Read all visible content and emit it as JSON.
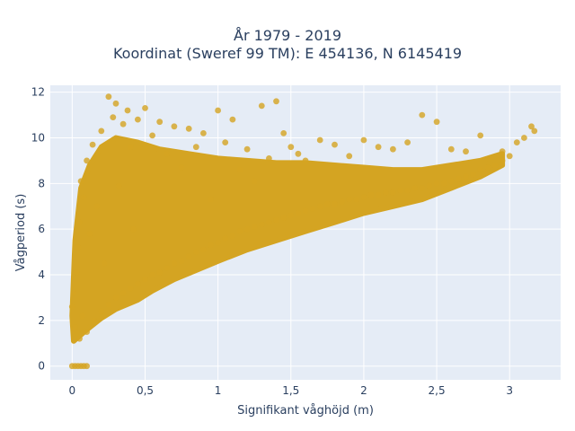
{
  "chart_data": {
    "type": "scatter",
    "title": "År 1979 - 2019",
    "subtitle": "Koordinat (Sweref 99 TM): E 454136, N 6145419",
    "xlabel": "Signifikant våghöjd (m)",
    "ylabel": "Vågperiod (s)",
    "xlim": [
      -0.15,
      3.35
    ],
    "ylim": [
      -0.6,
      12.3
    ],
    "xticks": [
      0,
      0.5,
      1,
      1.5,
      2,
      2.5,
      3
    ],
    "xtick_labels": [
      "0",
      "0,5",
      "1",
      "1,5",
      "2",
      "2,5",
      "3"
    ],
    "yticks": [
      0,
      2,
      4,
      6,
      8,
      10,
      12
    ],
    "ytick_labels": [
      "0",
      "2",
      "4",
      "6",
      "8",
      "10",
      "12"
    ],
    "grid": true,
    "marker_color": "#d4a422",
    "background_color": "#e5ecf6",
    "series": [
      {
        "points": [
          [
            0.0,
            0.0
          ],
          [
            0.02,
            0.0
          ],
          [
            0.04,
            0.0
          ],
          [
            0.06,
            0.0
          ],
          [
            0.08,
            0.0
          ],
          [
            0.1,
            0.0
          ],
          [
            0.0,
            2.6
          ],
          [
            0.01,
            3.2
          ],
          [
            0.02,
            1.7
          ],
          [
            0.03,
            4.1
          ],
          [
            0.04,
            5.2
          ],
          [
            0.05,
            1.2
          ],
          [
            0.05,
            6.3
          ],
          [
            0.06,
            8.1
          ],
          [
            0.07,
            2.2
          ],
          [
            0.08,
            7.4
          ],
          [
            0.1,
            1.5
          ],
          [
            0.1,
            9.0
          ],
          [
            0.12,
            5.8
          ],
          [
            0.14,
            9.7
          ],
          [
            0.15,
            2.0
          ],
          [
            0.17,
            7.0
          ],
          [
            0.2,
            2.4
          ],
          [
            0.2,
            10.3
          ],
          [
            0.22,
            4.5
          ],
          [
            0.25,
            2.7
          ],
          [
            0.25,
            11.8
          ],
          [
            0.28,
            10.9
          ],
          [
            0.3,
            3.0
          ],
          [
            0.3,
            11.5
          ],
          [
            0.32,
            7.9
          ],
          [
            0.35,
            3.2
          ],
          [
            0.35,
            10.6
          ],
          [
            0.38,
            11.2
          ],
          [
            0.4,
            3.4
          ],
          [
            0.4,
            9.6
          ],
          [
            0.42,
            6.0
          ],
          [
            0.45,
            3.6
          ],
          [
            0.45,
            10.8
          ],
          [
            0.5,
            3.8
          ],
          [
            0.5,
            11.3
          ],
          [
            0.55,
            4.0
          ],
          [
            0.55,
            10.1
          ],
          [
            0.6,
            4.1
          ],
          [
            0.6,
            10.7
          ],
          [
            0.65,
            4.3
          ],
          [
            0.65,
            9.3
          ],
          [
            0.7,
            4.5
          ],
          [
            0.7,
            10.5
          ],
          [
            0.75,
            4.6
          ],
          [
            0.75,
            8.7
          ],
          [
            0.8,
            4.8
          ],
          [
            0.8,
            10.4
          ],
          [
            0.85,
            5.0
          ],
          [
            0.85,
            9.6
          ],
          [
            0.9,
            5.1
          ],
          [
            0.9,
            10.2
          ],
          [
            0.95,
            5.3
          ],
          [
            0.95,
            7.3
          ],
          [
            1.0,
            5.4
          ],
          [
            1.0,
            11.2
          ],
          [
            1.05,
            5.6
          ],
          [
            1.05,
            9.8
          ],
          [
            1.1,
            5.7
          ],
          [
            1.1,
            10.8
          ],
          [
            1.15,
            5.9
          ],
          [
            1.15,
            8.6
          ],
          [
            1.2,
            6.0
          ],
          [
            1.2,
            9.5
          ],
          [
            1.25,
            6.1
          ],
          [
            1.25,
            8.1
          ],
          [
            1.3,
            6.2
          ],
          [
            1.3,
            11.4
          ],
          [
            1.35,
            6.3
          ],
          [
            1.35,
            9.1
          ],
          [
            1.4,
            6.4
          ],
          [
            1.4,
            11.6
          ],
          [
            1.45,
            6.5
          ],
          [
            1.45,
            10.2
          ],
          [
            1.5,
            6.6
          ],
          [
            1.5,
            9.6
          ],
          [
            1.55,
            6.7
          ],
          [
            1.55,
            9.3
          ],
          [
            1.6,
            6.8
          ],
          [
            1.6,
            9.0
          ],
          [
            1.65,
            6.9
          ],
          [
            1.7,
            7.0
          ],
          [
            1.7,
            9.9
          ],
          [
            1.75,
            7.1
          ],
          [
            1.8,
            7.1
          ],
          [
            1.8,
            9.7
          ],
          [
            1.85,
            7.2
          ],
          [
            1.9,
            7.3
          ],
          [
            1.9,
            9.2
          ],
          [
            1.95,
            7.3
          ],
          [
            2.0,
            7.4
          ],
          [
            2.0,
            9.9
          ],
          [
            2.05,
            7.5
          ],
          [
            2.1,
            7.5
          ],
          [
            2.1,
            9.6
          ],
          [
            2.15,
            7.6
          ],
          [
            2.2,
            7.6
          ],
          [
            2.2,
            9.5
          ],
          [
            2.25,
            7.7
          ],
          [
            2.3,
            7.7
          ],
          [
            2.3,
            9.8
          ],
          [
            2.35,
            7.8
          ],
          [
            2.4,
            7.8
          ],
          [
            2.4,
            11.0
          ],
          [
            2.45,
            7.9
          ],
          [
            2.5,
            8.0
          ],
          [
            2.5,
            10.7
          ],
          [
            2.55,
            8.0
          ],
          [
            2.6,
            8.1
          ],
          [
            2.6,
            9.5
          ],
          [
            2.65,
            8.2
          ],
          [
            2.7,
            8.3
          ],
          [
            2.7,
            9.4
          ],
          [
            2.75,
            8.4
          ],
          [
            2.8,
            8.6
          ],
          [
            2.8,
            10.1
          ],
          [
            2.85,
            8.7
          ],
          [
            2.9,
            8.8
          ],
          [
            2.95,
            9.0
          ],
          [
            2.95,
            9.4
          ],
          [
            3.0,
            9.2
          ],
          [
            3.05,
            9.8
          ],
          [
            3.1,
            10.0
          ],
          [
            3.15,
            10.5
          ],
          [
            3.17,
            10.3
          ]
        ]
      }
    ]
  }
}
